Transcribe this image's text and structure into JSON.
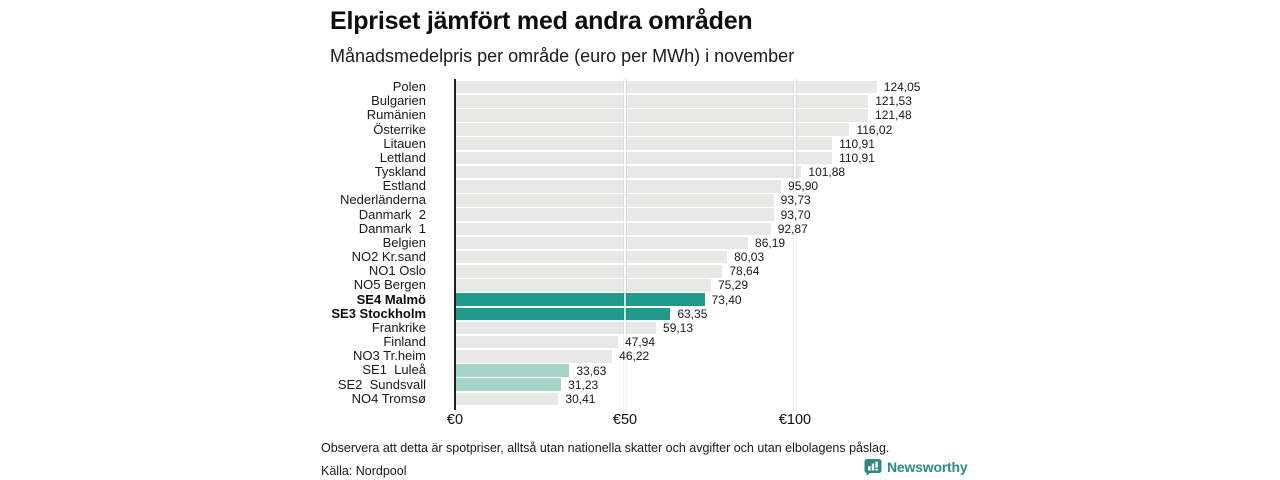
{
  "chart_data": {
    "type": "bar",
    "orientation": "horizontal",
    "title": "Elpriset jämfört med andra områden",
    "subtitle": "Månadsmedelpris per område (euro per MWh) i november",
    "unit": "euro per MWh",
    "categories": [
      "Polen",
      "Bulgarien",
      "Rumänien",
      "Österrike",
      "Litauen",
      "Lettland",
      "Tyskland",
      "Estland",
      "Nederländerna",
      "Danmark  2",
      "Danmark  1",
      "Belgien",
      "NO2 Kr.sand",
      "NO1 Oslo",
      "NO5 Bergen",
      "SE4 Malmö",
      "SE3 Stockholm",
      "Frankrike",
      "Finland",
      "NO3 Tr.heim",
      "SE1  Luleå",
      "SE2  Sundsvall",
      "NO4 Tromsø"
    ],
    "values": [
      124.05,
      121.53,
      121.48,
      116.02,
      110.91,
      110.91,
      101.88,
      95.9,
      93.73,
      93.7,
      92.87,
      86.19,
      80.03,
      78.64,
      75.29,
      73.4,
      63.35,
      59.13,
      47.94,
      46.22,
      33.63,
      31.23,
      30.41
    ],
    "value_labels": [
      "124,05",
      "121,53",
      "121,48",
      "116,02",
      "110,91",
      "110,91",
      "101,88",
      "95,90",
      "93,73",
      "93,70",
      "92,87",
      "86,19",
      "80,03",
      "78,64",
      "75,29",
      "73,40",
      "63,35",
      "59,13",
      "47,94",
      "46,22",
      "33,63",
      "31,23",
      "30,41"
    ],
    "bar_styles": [
      "default",
      "default",
      "default",
      "default",
      "default",
      "default",
      "default",
      "default",
      "default",
      "default",
      "default",
      "default",
      "default",
      "default",
      "default",
      "highlight",
      "highlight",
      "default",
      "default",
      "default",
      "highlight_light",
      "highlight_light",
      "default"
    ],
    "bold_categories": [
      "SE4 Malmö",
      "SE3 Stockholm"
    ],
    "xticks": [
      {
        "label": "€0",
        "value": 0
      },
      {
        "label": "€50",
        "value": 50
      },
      {
        "label": "€100",
        "value": 100
      }
    ],
    "xlim": [
      0,
      138
    ],
    "grid": "vertical-lines-at-ticks",
    "legend": false
  },
  "footer": {
    "note": "Observera att detta är spotpriser, alltså utan nationella skatter och avgifter och utan elbolagens påslag.",
    "source": "Källa: Nordpool",
    "logo_text": "Newsworthy"
  },
  "colors": {
    "bar_default": "#e8e8e7",
    "bar_highlight": "#1f9a8b",
    "bar_highlight_light": "#a7d4c9",
    "axis": "#1f1f1f",
    "text": "#121212",
    "logo": "#2e8b7f"
  }
}
